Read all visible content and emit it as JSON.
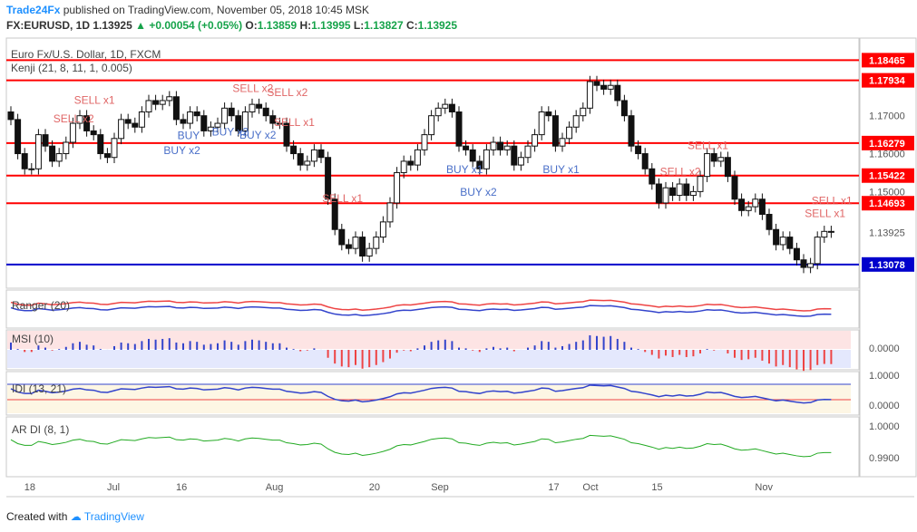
{
  "header": {
    "brand": "Trade24Fx",
    "published": " published on TradingView.com, November 05, 2018 10:45 MSK",
    "symbol": "FX:EURUSD, 1D",
    "last": "1.13925",
    "change": "+0.00054 (+0.05%)",
    "o_label": "O:",
    "o": "1.13859",
    "h_label": "H:",
    "h": "1.13995",
    "l_label": "L:",
    "l": "1.13827",
    "c_label": "C:",
    "c": "1.13925"
  },
  "footer": {
    "created_with": "Created with",
    "tradingview": "TradingView"
  },
  "colors": {
    "bull": "#ffffff",
    "bear": "#111111",
    "red_line": "#ff0000",
    "blue_line": "#0000cc",
    "sell_text": "#e06666",
    "buy_text": "#4a6fc8",
    "accent": "#1e90ff"
  },
  "chart_data": [
    {
      "type": "candlestick",
      "title": "Euro Fx/U.S. Dollar, 1D, FXCM",
      "indicator": "Kenji (21, 8, 11, 1, 0.005)",
      "ylim": [
        1.125,
        1.19
      ],
      "x_ticks": [
        "18",
        "Jul",
        "16",
        "Aug",
        "20",
        "Sep",
        "17",
        "Oct",
        "15",
        "Nov"
      ],
      "price_levels": [
        {
          "value": 1.18465,
          "label": "1.18465",
          "color": "red"
        },
        {
          "value": 1.17934,
          "label": "1.17934",
          "color": "red"
        },
        {
          "value": 1.16279,
          "label": "1.16279",
          "color": "red"
        },
        {
          "value": 1.15422,
          "label": "1.15422",
          "color": "red"
        },
        {
          "value": 1.14693,
          "label": "1.14693",
          "color": "red"
        },
        {
          "value": 1.13078,
          "label": "1.13078",
          "color": "blue"
        }
      ],
      "last_price": {
        "value": 1.13925,
        "label": "1.13925"
      },
      "y_ticks": [
        "1.17000",
        "1.16000",
        "1.15000",
        "1.13925"
      ],
      "closes": [
        1.169,
        1.16,
        1.156,
        1.156,
        1.165,
        1.162,
        1.158,
        1.16,
        1.163,
        1.168,
        1.17,
        1.166,
        1.165,
        1.16,
        1.159,
        1.164,
        1.169,
        1.168,
        1.167,
        1.171,
        1.174,
        1.173,
        1.174,
        1.175,
        1.169,
        1.168,
        1.171,
        1.17,
        1.166,
        1.167,
        1.168,
        1.172,
        1.17,
        1.166,
        1.171,
        1.173,
        1.172,
        1.17,
        1.168,
        1.168,
        1.162,
        1.16,
        1.157,
        1.158,
        1.161,
        1.159,
        1.148,
        1.14,
        1.136,
        1.135,
        1.138,
        1.133,
        1.135,
        1.138,
        1.142,
        1.147,
        1.155,
        1.158,
        1.157,
        1.161,
        1.165,
        1.17,
        1.172,
        1.173,
        1.171,
        1.162,
        1.161,
        1.158,
        1.156,
        1.161,
        1.163,
        1.161,
        1.162,
        1.157,
        1.159,
        1.162,
        1.165,
        1.171,
        1.17,
        1.162,
        1.164,
        1.167,
        1.17,
        1.172,
        1.179,
        1.178,
        1.177,
        1.178,
        1.174,
        1.17,
        1.162,
        1.16,
        1.156,
        1.152,
        1.147,
        1.151,
        1.149,
        1.152,
        1.149,
        1.15,
        1.154,
        1.16,
        1.158,
        1.159,
        1.154,
        1.148,
        1.145,
        1.146,
        1.148,
        1.144,
        1.14,
        1.136,
        1.138,
        1.135,
        1.132,
        1.13,
        1.131,
        1.138,
        1.1395,
        1.1393
      ],
      "sell_labels": [
        {
          "text": "SELL x2",
          "i": 8
        },
        {
          "text": "SELL x1",
          "i": 11
        },
        {
          "text": "SELL x2",
          "i": 34
        },
        {
          "text": "SELL x2",
          "i": 39
        },
        {
          "text": "SELL x1",
          "i": 40
        },
        {
          "text": "SELL x1",
          "i": 47
        },
        {
          "text": "SELL x2",
          "i": 96
        },
        {
          "text": "SELL x1",
          "i": 100
        },
        {
          "text": "SELL x1",
          "i": 117
        },
        {
          "text": "SELL x1",
          "i": 118
        }
      ],
      "buy_labels": [
        {
          "text": "BUY",
          "i": 26
        },
        {
          "text": "BUY x2",
          "i": 24
        },
        {
          "text": "BUY x2",
          "i": 31
        },
        {
          "text": "BUY x2",
          "i": 35
        },
        {
          "text": "BUY x1",
          "i": 65
        },
        {
          "text": "BUY x2",
          "i": 67
        },
        {
          "text": "BUY x1",
          "i": 79
        }
      ]
    },
    {
      "type": "line",
      "title": "Ranger (20)"
    },
    {
      "type": "bar",
      "title": "MSI (10)",
      "y_ticks": [
        "0.0000"
      ]
    },
    {
      "type": "line",
      "title": "IDI (13, 21)",
      "y_ticks": [
        "1.0000",
        "0.0000"
      ]
    },
    {
      "type": "line",
      "title": "AR DI (8, 1)",
      "y_ticks": [
        "1.0000",
        "0.9900"
      ]
    }
  ]
}
